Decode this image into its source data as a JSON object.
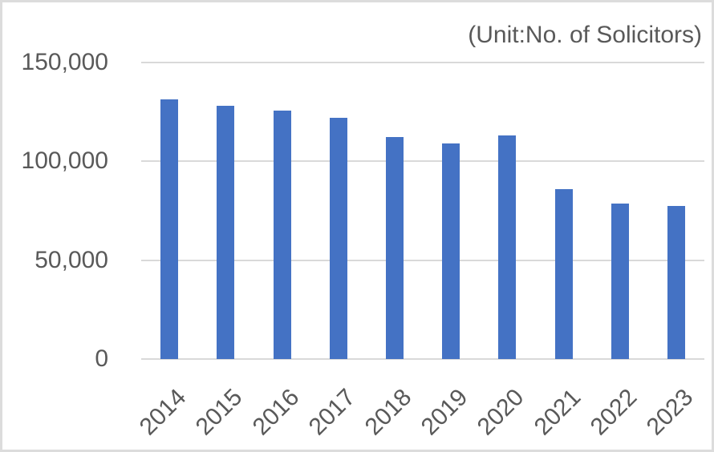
{
  "chart": {
    "annotation": "(Unit:No. of Solicitors)"
  },
  "chart_data": {
    "type": "bar",
    "title": "",
    "annotation": "(Unit:No. of Solicitors)",
    "categories": [
      "2014",
      "2015",
      "2016",
      "2017",
      "2018",
      "2019",
      "2020",
      "2021",
      "2022",
      "2023"
    ],
    "values": [
      131500,
      128000,
      125500,
      122000,
      112500,
      109000,
      113000,
      86000,
      78500,
      77500
    ],
    "xlabel": "",
    "ylabel": "",
    "ylim": [
      0,
      150000
    ],
    "yticks": [
      0,
      50000,
      100000,
      150000
    ],
    "ytick_labels": [
      "0",
      "50,000",
      "100,000",
      "150,000"
    ],
    "grid": true,
    "legend": false,
    "colors": {
      "bar": "#4472C4",
      "text": "#595959",
      "gridline": "#D9D9D9",
      "frame_border": "#DCDCDC",
      "background": "#FFFFFF"
    }
  }
}
